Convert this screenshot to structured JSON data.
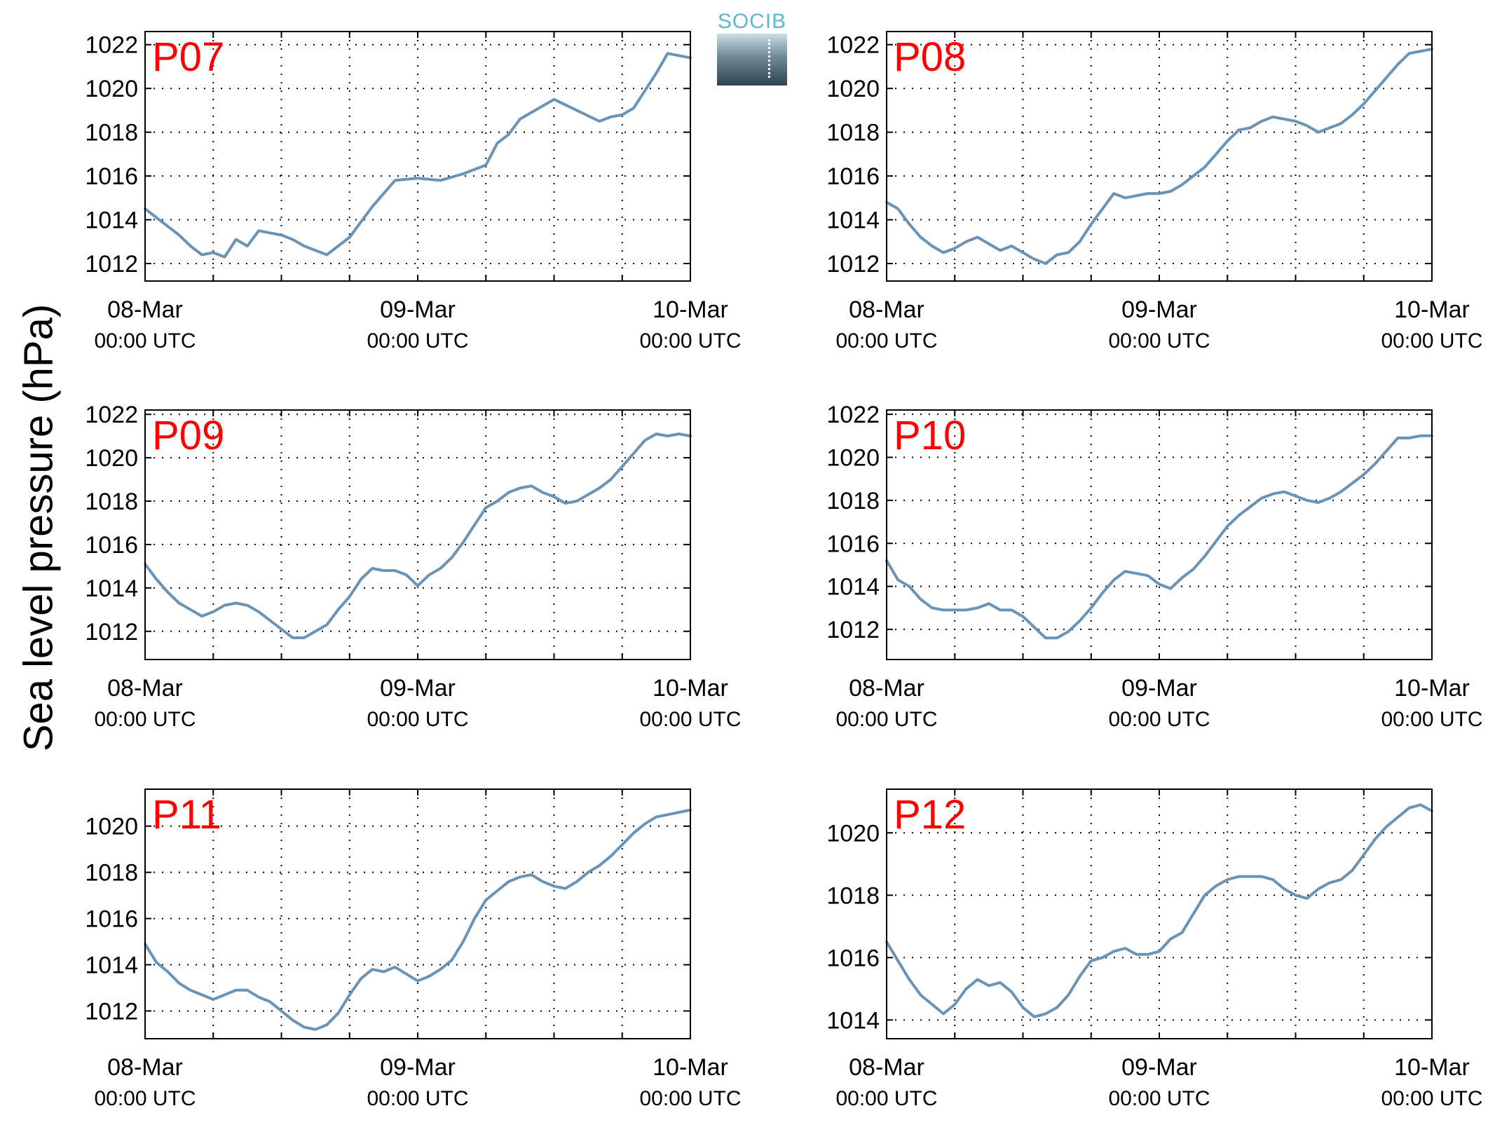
{
  "ylabel": "Sea level pressure (hPa)",
  "logo_text": "SOCIB",
  "colors": {
    "line": "#6a93b5",
    "label": "#ff0000"
  },
  "x_tick_labels": [
    {
      "date": "08-Mar",
      "time": "00:00 UTC"
    },
    {
      "date": "09-Mar",
      "time": "00:00 UTC"
    },
    {
      "date": "10-Mar",
      "time": "00:00 UTC"
    }
  ],
  "chart_data": [
    {
      "type": "line",
      "label": "P07",
      "x_unit": "hours since 08-Mar 00:00 UTC",
      "ylim": [
        1011.2,
        1022.6
      ],
      "yticks": [
        1012,
        1014,
        1016,
        1018,
        1020,
        1022
      ],
      "x": [
        0,
        1,
        2,
        3,
        4,
        5,
        6,
        7,
        8,
        9,
        10,
        11,
        12,
        13,
        14,
        15,
        16,
        18,
        20,
        22,
        24,
        26,
        28,
        30,
        31,
        32,
        33,
        34,
        35,
        36,
        38,
        40,
        41,
        42,
        43,
        44,
        45,
        46,
        47,
        48
      ],
      "y": [
        1014.5,
        1014.1,
        1013.7,
        1013.3,
        1012.8,
        1012.4,
        1012.5,
        1012.3,
        1013.1,
        1012.8,
        1013.5,
        1013.4,
        1013.3,
        1013.1,
        1012.8,
        1012.6,
        1012.4,
        1013.2,
        1014.6,
        1015.8,
        1015.9,
        1015.8,
        1016.1,
        1016.5,
        1017.5,
        1017.9,
        1018.6,
        1018.9,
        1019.2,
        1019.5,
        1019.0,
        1018.5,
        1018.7,
        1018.8,
        1019.1,
        1019.9,
        1020.7,
        1021.6,
        1021.5,
        1021.4
      ]
    },
    {
      "type": "line",
      "label": "P08",
      "x_unit": "hours since 08-Mar 00:00 UTC",
      "ylim": [
        1011.2,
        1022.6
      ],
      "yticks": [
        1012,
        1014,
        1016,
        1018,
        1020,
        1022
      ],
      "x": [
        0,
        1,
        2,
        3,
        4,
        5,
        6,
        7,
        8,
        9,
        10,
        11,
        12,
        13,
        14,
        15,
        16,
        17,
        18,
        19,
        20,
        21,
        22,
        23,
        24,
        25,
        26,
        27,
        28,
        29,
        30,
        31,
        32,
        33,
        34,
        35,
        36,
        37,
        38,
        39,
        40,
        41,
        42,
        43,
        44,
        45,
        46,
        47,
        48
      ],
      "y": [
        1014.8,
        1014.5,
        1013.8,
        1013.2,
        1012.8,
        1012.5,
        1012.7,
        1013.0,
        1013.2,
        1012.9,
        1012.6,
        1012.8,
        1012.5,
        1012.2,
        1012.0,
        1012.4,
        1012.5,
        1013.0,
        1013.8,
        1014.5,
        1015.2,
        1015.0,
        1015.1,
        1015.2,
        1015.2,
        1015.3,
        1015.6,
        1016.0,
        1016.4,
        1017.0,
        1017.6,
        1018.1,
        1018.2,
        1018.5,
        1018.7,
        1018.6,
        1018.5,
        1018.3,
        1018.0,
        1018.2,
        1018.4,
        1018.8,
        1019.3,
        1019.9,
        1020.5,
        1021.1,
        1021.6,
        1021.7,
        1021.8
      ]
    },
    {
      "type": "line",
      "label": "P09",
      "x_unit": "hours since 08-Mar 00:00 UTC",
      "ylim": [
        1010.7,
        1022.2
      ],
      "yticks": [
        1012,
        1014,
        1016,
        1018,
        1020,
        1022
      ],
      "x": [
        0,
        1,
        2,
        3,
        4,
        5,
        6,
        7,
        8,
        9,
        10,
        11,
        12,
        13,
        14,
        15,
        16,
        17,
        18,
        19,
        20,
        21,
        22,
        23,
        24,
        25,
        26,
        27,
        28,
        29,
        30,
        31,
        32,
        33,
        34,
        35,
        36,
        37,
        38,
        39,
        40,
        41,
        42,
        43,
        44,
        45,
        46,
        47,
        48
      ],
      "y": [
        1015.1,
        1014.4,
        1013.8,
        1013.3,
        1013.0,
        1012.7,
        1012.9,
        1013.2,
        1013.3,
        1013.2,
        1012.9,
        1012.5,
        1012.1,
        1011.7,
        1011.7,
        1012.0,
        1012.3,
        1013.0,
        1013.6,
        1014.4,
        1014.9,
        1014.8,
        1014.8,
        1014.6,
        1014.1,
        1014.6,
        1014.9,
        1015.4,
        1016.1,
        1016.9,
        1017.7,
        1018.0,
        1018.4,
        1018.6,
        1018.7,
        1018.4,
        1018.2,
        1017.9,
        1018.0,
        1018.3,
        1018.6,
        1019.0,
        1019.6,
        1020.2,
        1020.8,
        1021.1,
        1021.0,
        1021.1,
        1021.0
      ]
    },
    {
      "type": "line",
      "label": "P10",
      "x_unit": "hours since 08-Mar 00:00 UTC",
      "ylim": [
        1010.6,
        1022.2
      ],
      "yticks": [
        1012,
        1014,
        1016,
        1018,
        1020,
        1022
      ],
      "x": [
        0,
        1,
        2,
        3,
        4,
        5,
        6,
        7,
        8,
        9,
        10,
        11,
        12,
        13,
        14,
        15,
        16,
        17,
        18,
        19,
        20,
        21,
        22,
        23,
        24,
        25,
        26,
        27,
        28,
        29,
        30,
        31,
        32,
        33,
        34,
        35,
        36,
        37,
        38,
        39,
        40,
        41,
        42,
        43,
        44,
        45,
        46,
        47,
        48
      ],
      "y": [
        1015.2,
        1014.3,
        1014.0,
        1013.4,
        1013.0,
        1012.9,
        1012.9,
        1012.9,
        1013.0,
        1013.2,
        1012.9,
        1012.9,
        1012.6,
        1012.1,
        1011.6,
        1011.6,
        1011.9,
        1012.4,
        1013.0,
        1013.7,
        1014.3,
        1014.7,
        1014.6,
        1014.5,
        1014.1,
        1013.9,
        1014.4,
        1014.8,
        1015.4,
        1016.1,
        1016.8,
        1017.3,
        1017.7,
        1018.1,
        1018.3,
        1018.4,
        1018.2,
        1018.0,
        1017.9,
        1018.1,
        1018.4,
        1018.8,
        1019.2,
        1019.7,
        1020.3,
        1020.9,
        1020.9,
        1021.0,
        1021.0
      ]
    },
    {
      "type": "line",
      "label": "P11",
      "x_unit": "hours since 08-Mar 00:00 UTC",
      "ylim": [
        1010.8,
        1021.6
      ],
      "yticks": [
        1012,
        1014,
        1016,
        1018,
        1020
      ],
      "x": [
        0,
        1,
        2,
        3,
        4,
        5,
        6,
        7,
        8,
        9,
        10,
        11,
        12,
        13,
        14,
        15,
        16,
        17,
        18,
        19,
        20,
        21,
        22,
        23,
        24,
        25,
        26,
        27,
        28,
        29,
        30,
        31,
        32,
        33,
        34,
        35,
        36,
        37,
        38,
        39,
        40,
        41,
        42,
        43,
        44,
        45,
        46,
        47,
        48
      ],
      "y": [
        1014.9,
        1014.1,
        1013.7,
        1013.2,
        1012.9,
        1012.7,
        1012.5,
        1012.7,
        1012.9,
        1012.9,
        1012.6,
        1012.4,
        1012.0,
        1011.6,
        1011.3,
        1011.2,
        1011.4,
        1011.9,
        1012.7,
        1013.4,
        1013.8,
        1013.7,
        1013.9,
        1013.6,
        1013.3,
        1013.5,
        1013.8,
        1014.2,
        1015.0,
        1016.0,
        1016.8,
        1017.2,
        1017.6,
        1017.8,
        1017.9,
        1017.6,
        1017.4,
        1017.3,
        1017.6,
        1018.0,
        1018.3,
        1018.7,
        1019.2,
        1019.7,
        1020.1,
        1020.4,
        1020.5,
        1020.6,
        1020.7
      ]
    },
    {
      "type": "line",
      "label": "P12",
      "x_unit": "hours since 08-Mar 00:00 UTC",
      "ylim": [
        1013.4,
        1021.4
      ],
      "yticks": [
        1014,
        1016,
        1018,
        1020
      ],
      "x": [
        0,
        1,
        2,
        3,
        4,
        5,
        6,
        7,
        8,
        9,
        10,
        11,
        12,
        13,
        14,
        15,
        16,
        17,
        18,
        19,
        20,
        21,
        22,
        23,
        24,
        25,
        26,
        27,
        28,
        29,
        30,
        31,
        32,
        33,
        34,
        35,
        36,
        37,
        38,
        39,
        40,
        41,
        42,
        43,
        44,
        45,
        46,
        47,
        48
      ],
      "y": [
        1016.5,
        1015.9,
        1015.3,
        1014.8,
        1014.5,
        1014.2,
        1014.5,
        1015.0,
        1015.3,
        1015.1,
        1015.2,
        1014.9,
        1014.4,
        1014.1,
        1014.2,
        1014.4,
        1014.8,
        1015.4,
        1015.9,
        1016.0,
        1016.2,
        1016.3,
        1016.1,
        1016.1,
        1016.2,
        1016.6,
        1016.8,
        1017.4,
        1018.0,
        1018.3,
        1018.5,
        1018.6,
        1018.6,
        1018.6,
        1018.5,
        1018.2,
        1018.0,
        1017.9,
        1018.2,
        1018.4,
        1018.5,
        1018.8,
        1019.3,
        1019.8,
        1020.2,
        1020.5,
        1020.8,
        1020.9,
        1020.7
      ]
    }
  ]
}
